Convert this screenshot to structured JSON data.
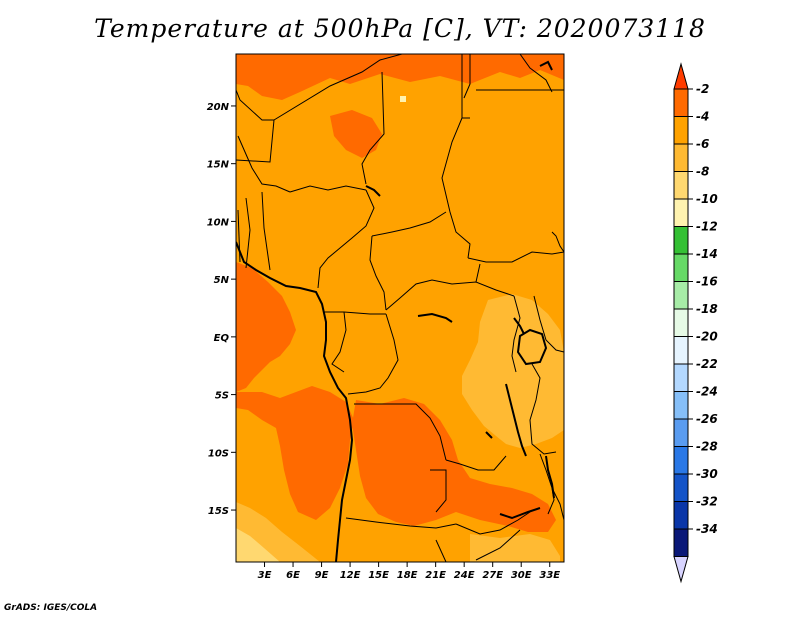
{
  "title": "Temperature at 500hPa [C], VT: 2020073118",
  "credit": "GrADS: IGES/COLA",
  "colors": {
    "land_base": "#ffa200",
    "warm": "#ff6a00",
    "mid": "#ffba33",
    "cool": "#ffd870",
    "pale": "#fff3b0",
    "border": "#000000"
  },
  "map": {
    "lon_range": [
      0,
      34.5
    ],
    "lat_range": [
      -19.5,
      24.5
    ],
    "lon_ticks": [
      {
        "value": 3,
        "label": "3E"
      },
      {
        "value": 6,
        "label": "6E"
      },
      {
        "value": 9,
        "label": "9E"
      },
      {
        "value": 12,
        "label": "12E"
      },
      {
        "value": 15,
        "label": "15E"
      },
      {
        "value": 18,
        "label": "18E"
      },
      {
        "value": 21,
        "label": "21E"
      },
      {
        "value": 24,
        "label": "24E"
      },
      {
        "value": 27,
        "label": "27E"
      },
      {
        "value": 30,
        "label": "30E"
      },
      {
        "value": 33,
        "label": "33E"
      }
    ],
    "lat_ticks": [
      {
        "value": 20,
        "label": "20N"
      },
      {
        "value": 15,
        "label": "15N"
      },
      {
        "value": 10,
        "label": "10N"
      },
      {
        "value": 5,
        "label": "5N"
      },
      {
        "value": 0,
        "label": "EQ"
      },
      {
        "value": -5,
        "label": "5S"
      },
      {
        "value": -10,
        "label": "10S"
      },
      {
        "value": -15,
        "label": "15S"
      }
    ]
  },
  "colorbar": {
    "labels": [
      "-2",
      "-4",
      "-6",
      "-8",
      "-10",
      "-12",
      "-14",
      "-16",
      "-18",
      "-20",
      "-22",
      "-24",
      "-26",
      "-28",
      "-30",
      "-32",
      "-34"
    ],
    "colors": [
      "#ff3c00",
      "#ff6a00",
      "#ffa200",
      "#ffba33",
      "#ffd870",
      "#fff3b0",
      "#34c034",
      "#66d966",
      "#a7eca7",
      "#e6fae6",
      "#e6f4ff",
      "#b3d8ff",
      "#86bff8",
      "#5a9cf0",
      "#2a78e6",
      "#1454c8",
      "#0a36a8",
      "#0a1878",
      "#d8d4ff"
    ]
  }
}
